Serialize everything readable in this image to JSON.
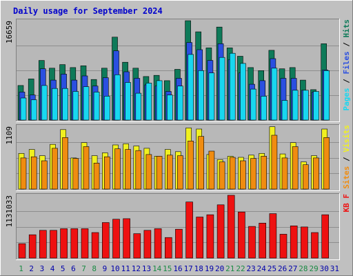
{
  "colors": {
    "background": "#c0c0c0",
    "panel": "#b8b8b8",
    "title": "#0000cc",
    "grid": "#8e8e8e",
    "hits": "#0e7a59",
    "files": "#2a4fe0",
    "pages": "#18d7f0",
    "visits": "#f0f020",
    "sites": "#f08c10",
    "kbf": "#ee1111",
    "weekday_label": "#0000aa",
    "weekend_label": "#1a8a44"
  },
  "chart_data": {
    "title": "Daily usage for September 2024",
    "type": "bar",
    "categories": [
      "1",
      "2",
      "3",
      "4",
      "5",
      "6",
      "7",
      "8",
      "9",
      "10",
      "11",
      "12",
      "13",
      "14",
      "15",
      "16",
      "17",
      "18",
      "19",
      "20",
      "21",
      "22",
      "23",
      "24",
      "25",
      "26",
      "27",
      "28",
      "29",
      "30",
      "31"
    ],
    "weekend_days": [
      "1",
      "7",
      "8",
      "14",
      "15",
      "21",
      "22",
      "28",
      "29"
    ],
    "panels": [
      {
        "id": "hits-files-pages",
        "max_label": "16659",
        "ylim": [
          0,
          16659
        ],
        "legend": [
          {
            "text": "Pages",
            "color": "#18d7f0"
          },
          {
            "text": " / ",
            "color": "#000000"
          },
          {
            "text": "Files",
            "color": "#2a4fe0"
          },
          {
            "text": " / ",
            "color": "#000000"
          },
          {
            "text": "Hits",
            "color": "#0e7a59"
          }
        ],
        "series": [
          {
            "name": "Hits",
            "color": "#0e7a59",
            "values": [
              5800,
              6900,
              10000,
              8700,
              9300,
              8800,
              9100,
              6800,
              8700,
              13900,
              9700,
              8700,
              7300,
              7500,
              6600,
              8500,
              16659,
              14800,
              12100,
              15600,
              12100,
              10700,
              8800,
              8300,
              11700,
              8600,
              8800,
              6700,
              5100,
              12800,
              0
            ]
          },
          {
            "name": "Files",
            "color": "#2a4fe0",
            "values": [
              4700,
              4200,
              8600,
              6700,
              7700,
              6700,
              7400,
              5700,
              7100,
              11600,
              8100,
              7000,
              5900,
              5700,
              4800,
              7000,
              13000,
              11800,
              10000,
              12800,
              10100,
              7900,
              6000,
              6600,
              10300,
              7000,
              7000,
              5000,
              4700,
              8400,
              0
            ]
          },
          {
            "name": "Pages",
            "color": "#18d7f0",
            "values": [
              3700,
              3400,
              5800,
              5300,
              5300,
              4800,
              5600,
              4700,
              4000,
              7600,
              6300,
              4500,
              6200,
              6600,
              4200,
              5700,
              11000,
              8300,
              7900,
              10500,
              11200,
              9500,
              5200,
              4000,
              8700,
              3300,
              5000,
              5000,
              4800,
              8300,
              0
            ]
          }
        ]
      },
      {
        "id": "visits-sites",
        "max_label": "1109",
        "ylim": [
          0,
          1109
        ],
        "legend": [
          {
            "text": "Sites",
            "color": "#f08c10"
          },
          {
            "text": " / ",
            "color": "#000000"
          },
          {
            "text": "Visits",
            "color": "#f0f020"
          }
        ],
        "series": [
          {
            "name": "Visits",
            "color": "#f0f020",
            "values": [
              630,
              700,
              590,
              790,
              1050,
              550,
              820,
              590,
              640,
              780,
              800,
              760,
              720,
              580,
              700,
              660,
              1080,
              1060,
              610,
              520,
              580,
              560,
              600,
              630,
              1100,
              620,
              820,
              480,
              590,
              1060,
              0
            ]
          },
          {
            "name": "Sites",
            "color": "#f08c10",
            "values": [
              550,
              570,
              500,
              720,
              910,
              540,
              750,
              460,
              570,
              710,
              700,
              680,
              610,
              580,
              600,
              590,
              850,
              930,
              670,
              480,
              560,
              500,
              540,
              580,
              950,
              550,
              750,
              430,
              550,
              910,
              0
            ]
          }
        ]
      },
      {
        "id": "kbf",
        "max_label": "1131033",
        "ylim": [
          0,
          1131033
        ],
        "legend": [
          {
            "text": "KB F",
            "color": "#ee1111"
          }
        ],
        "series": [
          {
            "name": "KB F",
            "color": "#ee1111",
            "values": [
              260000,
              420000,
              500000,
              500000,
              530000,
              530000,
              530000,
              460000,
              640000,
              700000,
              710000,
              440000,
              500000,
              530000,
              370000,
              520000,
              1010000,
              740000,
              780000,
              960000,
              1131033,
              830000,
              570000,
              630000,
              800000,
              430000,
              580000,
              560000,
              460000,
              780000,
              0
            ]
          }
        ]
      }
    ]
  }
}
